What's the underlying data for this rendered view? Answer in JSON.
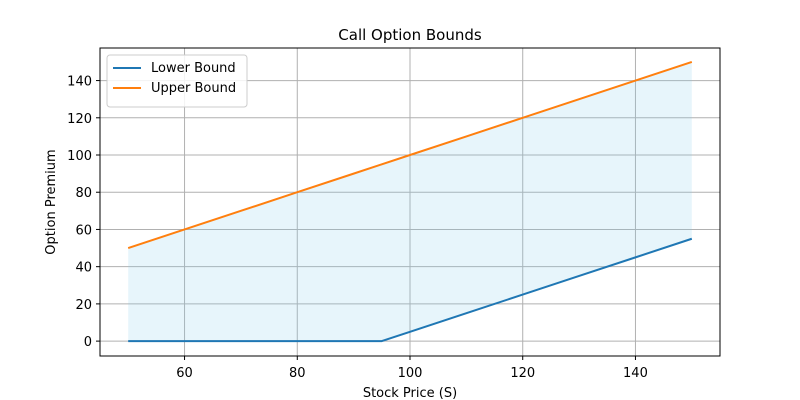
{
  "chart_data": {
    "type": "line",
    "title": "Call Option Bounds",
    "xlabel": "Stock Price (S)",
    "ylabel": "Option Premium",
    "xlim": [
      45,
      155
    ],
    "ylim": [
      -8,
      157.5
    ],
    "xticks": [
      60,
      80,
      100,
      120,
      140
    ],
    "yticks": [
      0,
      20,
      40,
      60,
      80,
      100,
      120,
      140
    ],
    "grid": true,
    "legend_position": "top-left",
    "x": [
      50,
      60,
      70,
      80,
      90,
      95,
      100,
      110,
      120,
      130,
      140,
      150
    ],
    "series": [
      {
        "name": "Lower Bound",
        "color": "#1f77b4",
        "values": [
          0,
          0,
          0,
          0,
          0,
          0,
          5,
          15,
          25,
          35,
          45,
          55
        ]
      },
      {
        "name": "Upper Bound",
        "color": "#ff7f0e",
        "values": [
          50,
          60,
          70,
          80,
          90,
          95,
          100,
          110,
          120,
          130,
          140,
          150
        ]
      }
    ],
    "fill_between": {
      "series": [
        "Lower Bound",
        "Upper Bound"
      ],
      "color": "#87ceeb",
      "opacity": 0.2
    }
  }
}
